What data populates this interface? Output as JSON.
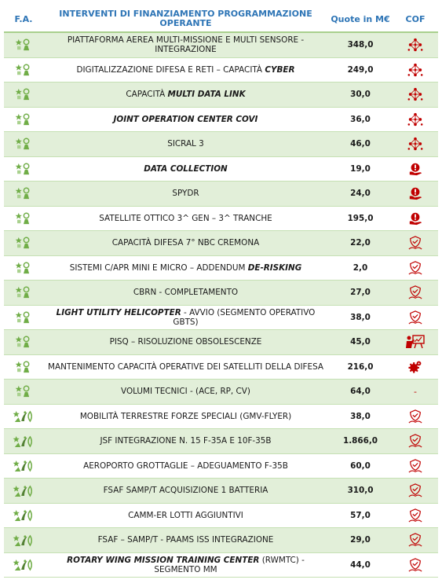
{
  "header": {
    "fa": "F.A.",
    "interventi": "INTERVENTI DI FINANZIAMENTO PROGRAMMAZIONE OPERANTE",
    "quote": "Quote in M€",
    "cof": "COF"
  },
  "table": {
    "rows": [
      {
        "intervento": [
          {
            "text": "PIATTAFORMA AEREA MULTI-MISSIONE E MULTI SENSORE - INTEGRAZIONE"
          }
        ],
        "quote": "348,0"
      },
      {
        "intervento": [
          {
            "text": "DIGITALIZZAZIONE DIFESA E RETI – CAPACITÀ "
          },
          {
            "text": "CYBER",
            "italic": true
          }
        ],
        "quote": "249,0"
      },
      {
        "intervento": [
          {
            "text": "CAPACITÀ "
          },
          {
            "text": "MULTI DATA LINK",
            "italic": true
          }
        ],
        "quote": "30,0"
      },
      {
        "intervento": [
          {
            "text": "JOINT OPERATION CENTER COVI",
            "italic": true
          }
        ],
        "quote": "36,0"
      },
      {
        "intervento": [
          {
            "text": "SICRAL 3"
          }
        ],
        "quote": "46,0"
      },
      {
        "intervento": [
          {
            "text": "DATA COLLECTION",
            "italic": true
          }
        ],
        "quote": "19,0"
      },
      {
        "intervento": [
          {
            "text": "SPYDR"
          }
        ],
        "quote": "24,0"
      },
      {
        "intervento": [
          {
            "text": "SATELLITE OTTICO 3^ GEN – 3^ TRANCHE"
          }
        ],
        "quote": "195,0"
      },
      {
        "intervento": [
          {
            "text": "CAPACITÀ DIFESA 7° NBC CREMONA"
          }
        ],
        "quote": "22,0"
      },
      {
        "intervento": [
          {
            "text": "SISTEMI C/APR MINI E MICRO – ADDENDUM "
          },
          {
            "text": "DE-RISKING",
            "italic": true
          }
        ],
        "quote": "2,0"
      },
      {
        "intervento": [
          {
            "text": "CBRN - COMPLETAMENTO"
          }
        ],
        "quote": "27,0"
      },
      {
        "intervento": [
          {
            "text": "LIGHT UTILITY HELICOPTER",
            "italic": true
          },
          {
            "text": " - AVVIO (SEGMENTO OPERATIVO GBTS)"
          }
        ],
        "quote": "38,0"
      },
      {
        "intervento": [
          {
            "text": "PISQ – RISOLUZIONE OBSOLESCENZE"
          }
        ],
        "quote": "45,0"
      },
      {
        "intervento": [
          {
            "text": "MANTENIMENTO CAPACITÀ OPERATIVE DEI SATELLITI DELLA DIFESA"
          }
        ],
        "quote": "216,0"
      },
      {
        "intervento": [
          {
            "text": "VOLUMI TECNICI - (ACE, RP, CV)"
          }
        ],
        "quote": "64,0",
        "cof": "-"
      },
      {
        "intervento": [
          {
            "text": "MOBILITÀ TERRESTRE FORZE SPECIALI (GMV-FLYER)"
          }
        ],
        "quote": "38,0"
      },
      {
        "intervento": [
          {
            "text": "JSF INTEGRAZIONE N. 15 F-35A E 10F-35B"
          }
        ],
        "quote": "1.866,0"
      },
      {
        "intervento": [
          {
            "text": "AEROPORTO GROTTAGLIE – ADEGUAMENTO F-35B"
          }
        ],
        "quote": "60,0"
      },
      {
        "intervento": [
          {
            "text": "FSAF SAMP/T ACQUISIZIONE 1 BATTERIA"
          }
        ],
        "quote": "310,0"
      },
      {
        "intervento": [
          {
            "text": "CAMM-ER LOTTI AGGIUNTIVI"
          }
        ],
        "quote": "57,0"
      },
      {
        "intervento": [
          {
            "text": "FSAF – SAMP/T - PAAMS ISS INTEGRAZIONE"
          }
        ],
        "quote": "29,0"
      },
      {
        "intervento": [
          {
            "text": "ROTARY WING MISSION TRAINING CENTER",
            "italic": true
          },
          {
            "text": " (RWMTC) - SEGMENTO MM"
          }
        ],
        "quote": "44,0"
      }
    ]
  }
}
